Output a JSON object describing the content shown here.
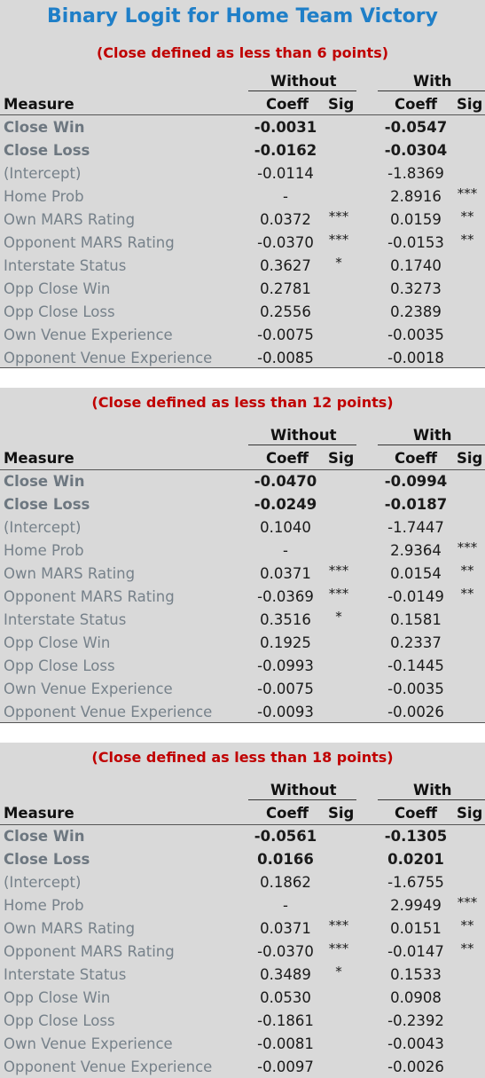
{
  "title": "Binary Logit for Home Team Victory",
  "headers": {
    "without": "Without",
    "with": "With",
    "measure": "Measure",
    "coeff": "Coeff",
    "sig": "Sig"
  },
  "panels": [
    {
      "subtitle": "(Close defined as less than 6 points)",
      "rows": [
        {
          "label": "Close Win",
          "without_coeff": "-0.0031",
          "without_sig": "",
          "with_coeff": "-0.0547",
          "with_sig": "",
          "strong": true
        },
        {
          "label": "Close Loss",
          "without_coeff": "-0.0162",
          "without_sig": "",
          "with_coeff": "-0.0304",
          "with_sig": "",
          "strong": true
        },
        {
          "label": "(Intercept)",
          "without_coeff": "-0.0114",
          "without_sig": "",
          "with_coeff": "-1.8369",
          "with_sig": ""
        },
        {
          "label": "Home Prob",
          "without_coeff": "-",
          "without_sig": "",
          "with_coeff": "2.8916",
          "with_sig": "***"
        },
        {
          "label": "Own MARS Rating",
          "without_coeff": "0.0372",
          "without_sig": "***",
          "with_coeff": "0.0159",
          "with_sig": "**"
        },
        {
          "label": "Opponent MARS Rating",
          "without_coeff": "-0.0370",
          "without_sig": "***",
          "with_coeff": "-0.0153",
          "with_sig": "**"
        },
        {
          "label": "Interstate Status",
          "without_coeff": "0.3627",
          "without_sig": "*",
          "with_coeff": "0.1740",
          "with_sig": ""
        },
        {
          "label": "Opp Close Win",
          "without_coeff": "0.2781",
          "without_sig": "",
          "with_coeff": "0.3273",
          "with_sig": ""
        },
        {
          "label": "Opp Close Loss",
          "without_coeff": "0.2556",
          "without_sig": "",
          "with_coeff": "0.2389",
          "with_sig": ""
        },
        {
          "label": "Own Venue Experience",
          "without_coeff": "-0.0075",
          "without_sig": "",
          "with_coeff": "-0.0035",
          "with_sig": ""
        },
        {
          "label": "Opponent Venue Experience",
          "without_coeff": "-0.0085",
          "without_sig": "",
          "with_coeff": "-0.0018",
          "with_sig": ""
        }
      ]
    },
    {
      "subtitle": "(Close defined as less than 12 points)",
      "rows": [
        {
          "label": "Close Win",
          "without_coeff": "-0.0470",
          "without_sig": "",
          "with_coeff": "-0.0994",
          "with_sig": "",
          "strong": true
        },
        {
          "label": "Close Loss",
          "without_coeff": "-0.0249",
          "without_sig": "",
          "with_coeff": "-0.0187",
          "with_sig": "",
          "strong": true
        },
        {
          "label": "(Intercept)",
          "without_coeff": "0.1040",
          "without_sig": "",
          "with_coeff": "-1.7447",
          "with_sig": ""
        },
        {
          "label": "Home Prob",
          "without_coeff": "-",
          "without_sig": "",
          "with_coeff": "2.9364",
          "with_sig": "***"
        },
        {
          "label": "Own MARS Rating",
          "without_coeff": "0.0371",
          "without_sig": "***",
          "with_coeff": "0.0154",
          "with_sig": "**"
        },
        {
          "label": "Opponent MARS Rating",
          "without_coeff": "-0.0369",
          "without_sig": "***",
          "with_coeff": "-0.0149",
          "with_sig": "**"
        },
        {
          "label": "Interstate Status",
          "without_coeff": "0.3516",
          "without_sig": "*",
          "with_coeff": "0.1581",
          "with_sig": ""
        },
        {
          "label": "Opp Close Win",
          "without_coeff": "0.1925",
          "without_sig": "",
          "with_coeff": "0.2337",
          "with_sig": ""
        },
        {
          "label": "Opp Close Loss",
          "without_coeff": "-0.0993",
          "without_sig": "",
          "with_coeff": "-0.1445",
          "with_sig": ""
        },
        {
          "label": "Own Venue Experience",
          "without_coeff": "-0.0075",
          "without_sig": "",
          "with_coeff": "-0.0035",
          "with_sig": ""
        },
        {
          "label": "Opponent Venue Experience",
          "without_coeff": "-0.0093",
          "without_sig": "",
          "with_coeff": "-0.0026",
          "with_sig": ""
        }
      ]
    },
    {
      "subtitle": "(Close defined as less than 18 points)",
      "rows": [
        {
          "label": "Close Win",
          "without_coeff": "-0.0561",
          "without_sig": "",
          "with_coeff": "-0.1305",
          "with_sig": "",
          "strong": true
        },
        {
          "label": "Close Loss",
          "without_coeff": "0.0166",
          "without_sig": "",
          "with_coeff": "0.0201",
          "with_sig": "",
          "strong": true
        },
        {
          "label": "(Intercept)",
          "without_coeff": "0.1862",
          "without_sig": "",
          "with_coeff": "-1.6755",
          "with_sig": ""
        },
        {
          "label": "Home Prob",
          "without_coeff": "-",
          "without_sig": "",
          "with_coeff": "2.9949",
          "with_sig": "***"
        },
        {
          "label": "Own MARS Rating",
          "without_coeff": "0.0371",
          "without_sig": "***",
          "with_coeff": "0.0151",
          "with_sig": "**"
        },
        {
          "label": "Opponent MARS Rating",
          "without_coeff": "-0.0370",
          "without_sig": "***",
          "with_coeff": "-0.0147",
          "with_sig": "**"
        },
        {
          "label": "Interstate Status",
          "without_coeff": "0.3489",
          "without_sig": "*",
          "with_coeff": "0.1533",
          "with_sig": ""
        },
        {
          "label": "Opp Close Win",
          "without_coeff": "0.0530",
          "without_sig": "",
          "with_coeff": "0.0908",
          "with_sig": ""
        },
        {
          "label": "Opp Close Loss",
          "without_coeff": "-0.1861",
          "without_sig": "",
          "with_coeff": "-0.2392",
          "with_sig": ""
        },
        {
          "label": "Own Venue Experience",
          "without_coeff": "-0.0081",
          "without_sig": "",
          "with_coeff": "-0.0043",
          "with_sig": ""
        },
        {
          "label": "Opponent Venue Experience",
          "without_coeff": "-0.0097",
          "without_sig": "",
          "with_coeff": "-0.0026",
          "with_sig": ""
        }
      ]
    }
  ]
}
